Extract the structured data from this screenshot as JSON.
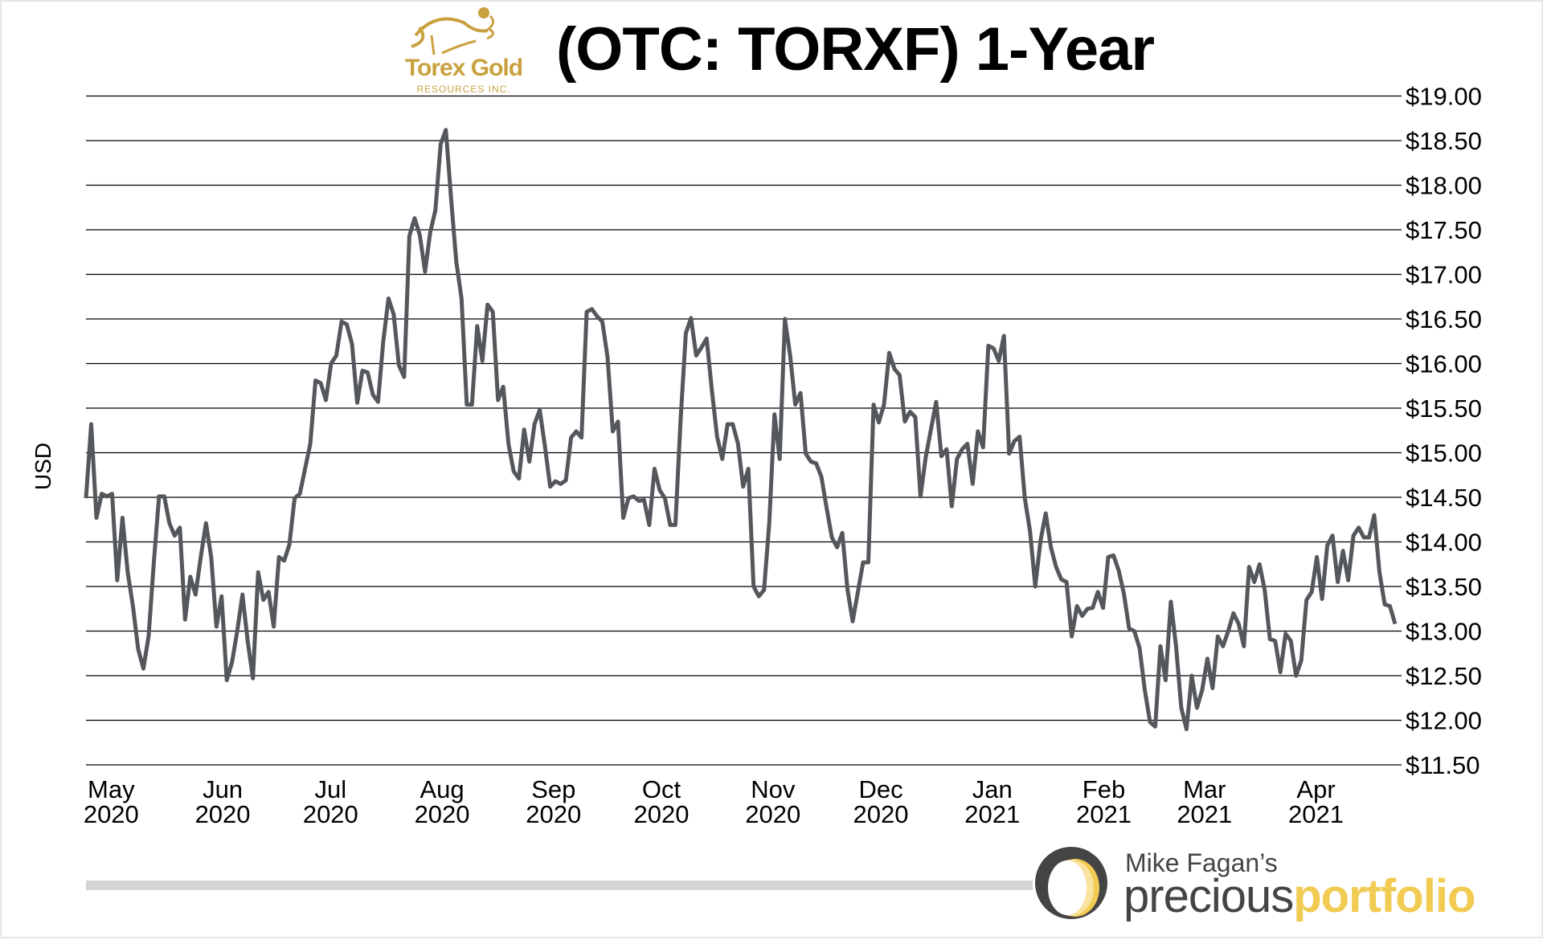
{
  "header": {
    "title": "(OTC: TORXF) 1-Year",
    "company_logo": {
      "name": "Torex Gold",
      "sub": "RESOURCES INC.",
      "color": "#c9a13f"
    }
  },
  "footer": {
    "brand_top": "Mike Fagan’s",
    "brand_left": "precious",
    "brand_right": "portfolio",
    "brand_colors": {
      "dark": "#444444",
      "gold": "#f2cb52"
    }
  },
  "chart_data": {
    "type": "line",
    "title": "(OTC: TORXF) 1-Year",
    "xlabel": "",
    "ylabel": "USD",
    "ylim": [
      11.5,
      19.0
    ],
    "y_ticks": [
      "$19.00",
      "$18.50",
      "$18.00",
      "$17.50",
      "$17.00",
      "$16.50",
      "$16.00",
      "$15.50",
      "$15.00",
      "$14.50",
      "$14.00",
      "$13.50",
      "$13.00",
      "$12.50",
      "$12.00",
      "$11.50"
    ],
    "y_tick_values": [
      19,
      18.5,
      18,
      17.5,
      17,
      16.5,
      16,
      15.5,
      15,
      14.5,
      14,
      13.5,
      13,
      12.5,
      12,
      11.5
    ],
    "x_ticks": [
      {
        "month": "May",
        "year": "2020",
        "date": "2020-05-01"
      },
      {
        "month": "Jun",
        "year": "2020",
        "date": "2020-06-01"
      },
      {
        "month": "Jul",
        "year": "2020",
        "date": "2020-07-01"
      },
      {
        "month": "Aug",
        "year": "2020",
        "date": "2020-08-01"
      },
      {
        "month": "Sep",
        "year": "2020",
        "date": "2020-09-01"
      },
      {
        "month": "Oct",
        "year": "2020",
        "date": "2020-10-01"
      },
      {
        "month": "Nov",
        "year": "2020",
        "date": "2020-11-01"
      },
      {
        "month": "Dec",
        "year": "2020",
        "date": "2020-12-01"
      },
      {
        "month": "Jan",
        "year": "2021",
        "date": "2021-01-01"
      },
      {
        "month": "Feb",
        "year": "2021",
        "date": "2021-02-01"
      },
      {
        "month": "Mar",
        "year": "2021",
        "date": "2021-03-01"
      },
      {
        "month": "Apr",
        "year": "2021",
        "date": "2021-04-01"
      }
    ],
    "x_range": [
      "2020-04-24",
      "2021-04-23"
    ],
    "grid": "horizontal",
    "line_color": "#54575b",
    "series": [
      {
        "values": [
          14.49,
          15.32,
          14.27,
          14.54,
          14.51,
          14.54,
          13.57,
          14.27,
          13.66,
          13.28,
          12.8,
          12.58,
          12.94,
          13.77,
          14.51,
          14.51,
          14.21,
          14.07,
          14.16,
          13.13,
          13.61,
          13.41,
          13.83,
          14.21,
          13.83,
          13.05,
          13.39,
          12.45,
          12.65,
          13.0,
          13.41,
          12.89,
          12.47,
          13.66,
          13.35,
          13.44,
          13.05,
          13.83,
          13.79,
          13.97,
          14.49,
          14.54,
          14.82,
          15.1,
          15.81,
          15.78,
          15.59,
          16.0,
          16.09,
          16.47,
          16.44,
          16.22,
          15.56,
          15.92,
          15.9,
          15.65,
          15.57,
          16.25,
          16.73,
          16.55,
          15.98,
          15.85,
          17.43,
          17.63,
          17.44,
          17.03,
          17.47,
          17.72,
          18.46,
          18.62,
          17.85,
          17.14,
          16.73,
          15.54,
          15.54,
          16.42,
          16.03,
          16.66,
          16.58,
          15.59,
          15.74,
          15.1,
          14.79,
          14.71,
          15.26,
          14.9,
          15.32,
          15.48,
          15.07,
          14.62,
          14.68,
          14.65,
          14.69,
          15.17,
          15.24,
          15.17,
          16.58,
          16.61,
          16.53,
          16.47,
          16.07,
          15.24,
          15.35,
          14.27,
          14.49,
          14.51,
          14.46,
          14.47,
          14.19,
          14.82,
          14.58,
          14.49,
          14.19,
          14.19,
          15.37,
          16.34,
          16.51,
          16.09,
          16.18,
          16.28,
          15.7,
          15.18,
          14.93,
          15.32,
          15.32,
          15.1,
          14.62,
          14.82,
          13.5,
          13.39,
          13.46,
          14.21,
          15.43,
          14.93,
          16.5,
          16.09,
          15.54,
          15.67,
          14.99,
          14.9,
          14.88,
          14.73,
          14.38,
          14.05,
          13.94,
          14.1,
          13.47,
          13.11,
          13.44,
          13.77,
          13.77,
          15.54,
          15.34,
          15.54,
          16.12,
          15.94,
          15.87,
          15.35,
          15.46,
          15.4,
          14.51,
          14.95,
          15.26,
          15.57,
          14.96,
          15.04,
          14.4,
          14.93,
          15.04,
          15.1,
          14.65,
          15.24,
          15.06,
          16.2,
          16.17,
          16.03,
          16.31,
          14.99,
          15.13,
          15.18,
          14.49,
          14.12,
          13.5,
          14.01,
          14.32,
          13.94,
          13.72,
          13.58,
          13.55,
          12.94,
          13.28,
          13.17,
          13.25,
          13.26,
          13.44,
          13.26,
          13.83,
          13.85,
          13.68,
          13.42,
          13.03,
          13.0,
          12.81,
          12.34,
          11.98,
          11.93,
          12.83,
          12.45,
          13.33,
          12.83,
          12.14,
          11.9,
          12.5,
          12.14,
          12.34,
          12.69,
          12.36,
          12.94,
          12.83,
          13.0,
          13.2,
          13.08,
          12.83,
          13.72,
          13.55,
          13.75,
          13.46,
          12.91,
          12.89,
          12.54,
          12.97,
          12.89,
          12.5,
          12.67,
          13.35,
          13.44,
          13.83,
          13.36,
          13.96,
          14.07,
          13.55,
          13.9,
          13.57,
          14.07,
          14.16,
          14.05,
          14.05,
          14.3,
          13.66,
          13.3,
          13.28,
          13.08
        ]
      }
    ]
  }
}
